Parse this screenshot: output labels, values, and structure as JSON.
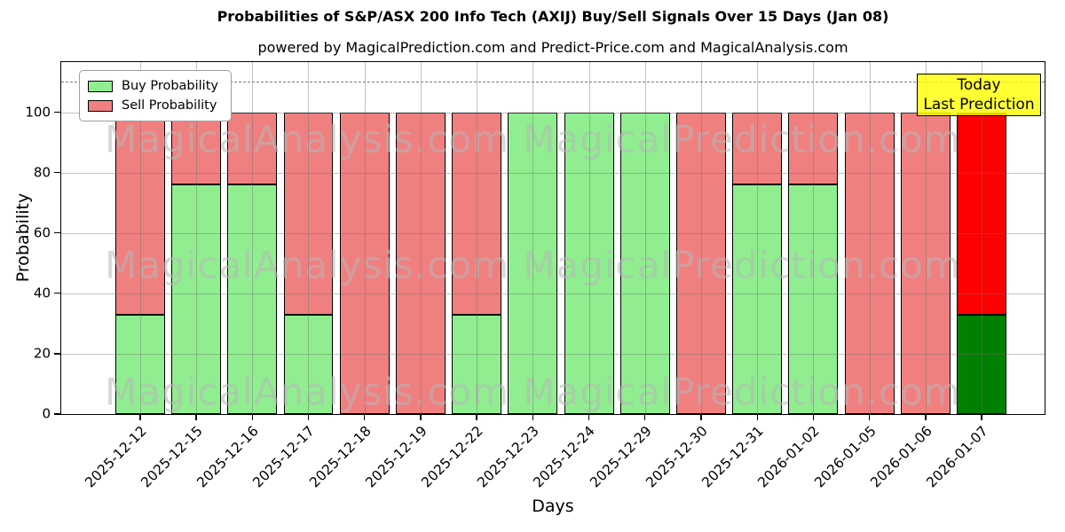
{
  "title": "Probabilities of S&P/ASX 200 Info Tech (AXIJ) Buy/Sell Signals Over 15 Days (Jan 08)",
  "subtitle": "powered by MagicalPrediction.com and Predict-Price.com and MagicalAnalysis.com",
  "legend": {
    "buy_label": "Buy Probability",
    "sell_label": "Sell Probability"
  },
  "annotation_box": {
    "line1": "Today",
    "line2": "Last Prediction",
    "bg_color": "#FFFF00"
  },
  "watermarks": [
    "MagicalAnalysis.com",
    "MagicalPrediction.com"
  ],
  "colors": {
    "buy": "#90EE90",
    "sell": "#F08080",
    "today_buy": "#008000",
    "today_sell": "#FF0000",
    "bar_edge": "#000000",
    "dashed_line": "#7A7A7A",
    "grid": "#B0B0B0"
  },
  "chart_data": {
    "type": "bar",
    "stacked": true,
    "title": "Probabilities of S&P/ASX 200 Info Tech (AXIJ) Buy/Sell Signals Over 15 Days (Jan 08)",
    "xlabel": "Days",
    "ylabel": "Probability",
    "categories": [
      "2025-12-12",
      "2025-12-15",
      "2025-12-16",
      "2025-12-17",
      "2025-12-18",
      "2025-12-19",
      "2025-12-22",
      "2025-12-23",
      "2025-12-24",
      "2025-12-29",
      "2025-12-30",
      "2025-12-31",
      "2026-01-02",
      "2026-01-05",
      "2026-01-06",
      "2026-01-07"
    ],
    "series": [
      {
        "name": "Buy Probability",
        "color": "#90EE90",
        "values": [
          33,
          76,
          76,
          33,
          0,
          0,
          33,
          100,
          100,
          100,
          0,
          76,
          76,
          0,
          0,
          33
        ]
      },
      {
        "name": "Sell Probability",
        "color": "#F08080",
        "values": [
          67,
          24,
          24,
          67,
          100,
          100,
          67,
          0,
          0,
          0,
          100,
          24,
          24,
          100,
          100,
          67
        ]
      }
    ],
    "today_bar": {
      "index": 15,
      "buy_color": "#008000",
      "sell_color": "#FF0000"
    },
    "yticks": [
      0,
      20,
      40,
      60,
      80,
      100
    ],
    "ylim": [
      0,
      116.6
    ],
    "dashed_line_y": 110,
    "grid": true,
    "legend_position": "upper left"
  }
}
